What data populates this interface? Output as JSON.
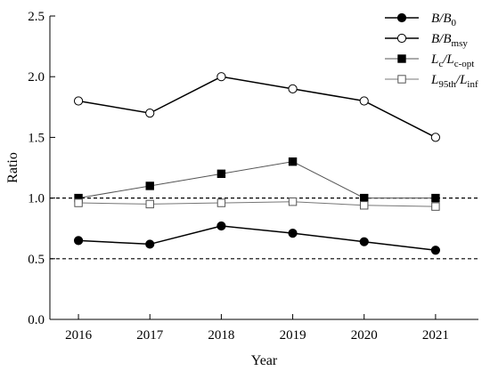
{
  "chart_data": {
    "type": "line",
    "xlabel": "Year",
    "ylabel": "Ratio",
    "x": [
      2016,
      2017,
      2018,
      2019,
      2020,
      2021
    ],
    "xlim": [
      2015.6,
      2021.6
    ],
    "ylim": [
      0.0,
      2.5
    ],
    "yticks": [
      "0.0",
      "0.5",
      "1.0",
      "1.5",
      "2.0",
      "2.5"
    ],
    "xticks": [
      "2016",
      "2017",
      "2018",
      "2019",
      "2020",
      "2021"
    ],
    "reference_lines": [
      0.5,
      1.0
    ],
    "grid": false,
    "legend_position": "top-right",
    "series": [
      {
        "key": "b_b0",
        "name_main": "B",
        "name_sep": "/",
        "name_main2": "B",
        "name_sub": "0",
        "values": [
          0.65,
          0.62,
          0.77,
          0.71,
          0.64,
          0.57
        ],
        "marker": "circle-filled",
        "color": "#000000"
      },
      {
        "key": "b_bmsy",
        "name_main": "B",
        "name_sep": "/",
        "name_main2": "B",
        "name_sub": "msy",
        "values": [
          1.8,
          1.7,
          2.0,
          1.9,
          1.8,
          1.5
        ],
        "marker": "circle-open",
        "color": "#000000"
      },
      {
        "key": "lc_lcopt",
        "name_main": "L",
        "name_sub1": "c",
        "name_sep": "/",
        "name_main2": "L",
        "name_sub": "c-opt",
        "values": [
          1.0,
          1.1,
          1.2,
          1.3,
          1.0,
          1.0
        ],
        "marker": "square-filled",
        "color": "#555555"
      },
      {
        "key": "l95_linf",
        "name_main": "L",
        "name_sub1": "95th",
        "name_sep": "/",
        "name_main2": "L",
        "name_sub": "inf",
        "values": [
          0.96,
          0.95,
          0.96,
          0.97,
          0.94,
          0.93
        ],
        "marker": "square-open",
        "color": "#777777"
      }
    ]
  }
}
